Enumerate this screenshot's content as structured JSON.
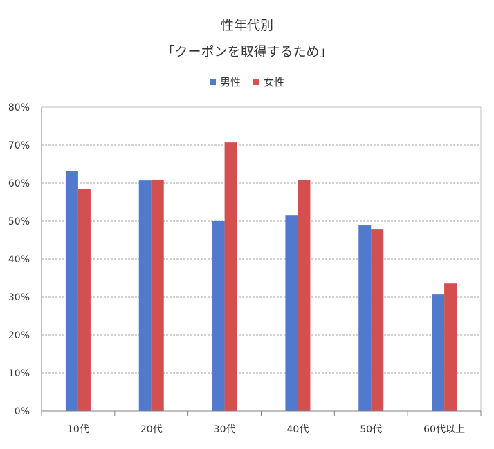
{
  "chart_data": {
    "type": "bar",
    "title_line1": "性年代別",
    "title_line2": "「クーポンを取得するため」",
    "categories": [
      "10代",
      "20代",
      "30代",
      "40代",
      "50代",
      "60代以上"
    ],
    "series": [
      {
        "name": "男性",
        "color": "#5179cc",
        "values": [
          63.2,
          60.7,
          50.0,
          51.6,
          48.9,
          30.7
        ]
      },
      {
        "name": "女性",
        "color": "#d45050",
        "values": [
          58.5,
          60.9,
          70.7,
          60.9,
          47.8,
          33.6
        ]
      }
    ],
    "ylim": [
      0,
      80
    ],
    "yticks": [
      0,
      10,
      20,
      30,
      40,
      50,
      60,
      70,
      80
    ],
    "ytick_labels": [
      "0%",
      "10%",
      "20%",
      "30%",
      "40%",
      "50%",
      "60%",
      "70%",
      "80%"
    ],
    "grid": true,
    "legend_position": "top"
  }
}
